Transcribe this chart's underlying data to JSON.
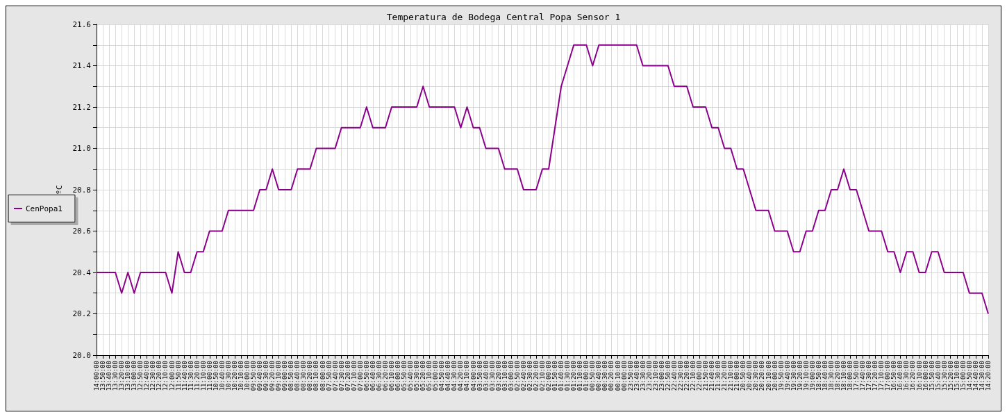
{
  "chart_data": {
    "type": "line",
    "title": "Temperatura de Bodega Central Popa Sensor 1",
    "ylabel": "ºC",
    "categories": [
      "14:00:00",
      "13:50:00",
      "13:40:00",
      "13:30:00",
      "13:20:00",
      "13:10:00",
      "13:00:00",
      "12:50:00",
      "12:40:00",
      "12:30:00",
      "12:20:00",
      "12:10:00",
      "12:00:00",
      "11:50:00",
      "11:40:00",
      "11:30:00",
      "11:20:00",
      "11:10:00",
      "11:00:00",
      "10:50:00",
      "10:40:00",
      "10:30:00",
      "10:20:00",
      "10:10:00",
      "10:00:00",
      "09:50:00",
      "09:40:00",
      "09:30:00",
      "09:20:00",
      "09:10:00",
      "09:00:00",
      "08:50:00",
      "08:40:00",
      "08:30:00",
      "08:20:00",
      "08:10:00",
      "08:00:00",
      "07:50:00",
      "07:40:00",
      "07:30:00",
      "07:20:00",
      "07:10:00",
      "07:00:00",
      "06:50:00",
      "06:40:00",
      "06:30:00",
      "06:20:00",
      "06:10:00",
      "06:00:00",
      "05:50:00",
      "05:40:00",
      "05:30:00",
      "05:20:00",
      "05:10:00",
      "05:00:00",
      "04:50:00",
      "04:40:00",
      "04:30:00",
      "04:20:00",
      "04:10:00",
      "04:00:00",
      "03:50:00",
      "03:40:00",
      "03:30:00",
      "03:20:00",
      "03:10:00",
      "03:00:00",
      "02:50:00",
      "02:40:00",
      "02:30:00",
      "02:20:00",
      "02:10:00",
      "02:00:00",
      "01:50:00",
      "01:40:00",
      "01:30:00",
      "01:20:00",
      "01:10:00",
      "01:00:00",
      "00:50:00",
      "00:40:00",
      "00:30:00",
      "00:20:00",
      "00:10:00",
      "00:00:00",
      "23:50:00",
      "23:40:00",
      "23:30:00",
      "23:20:00",
      "23:10:00",
      "23:00:00",
      "22:50:00",
      "22:40:00",
      "22:30:00",
      "22:20:00",
      "22:10:00",
      "22:00:00",
      "21:50:00",
      "21:40:00",
      "21:30:00",
      "21:20:00",
      "21:10:00",
      "21:00:00",
      "20:50:00",
      "20:40:00",
      "20:30:00",
      "20:20:00",
      "20:10:00",
      "20:00:00",
      "19:50:00",
      "19:40:00",
      "19:30:00",
      "19:20:00",
      "19:10:00",
      "19:00:00",
      "18:50:00",
      "18:40:00",
      "18:30:00",
      "18:20:00",
      "18:10:00",
      "18:00:00",
      "17:50:00",
      "17:40:00",
      "17:30:00",
      "17:20:00",
      "17:10:00",
      "17:00:00",
      "16:50:00",
      "16:40:00",
      "16:30:00",
      "16:20:00",
      "16:10:00",
      "16:00:00",
      "15:50:00",
      "15:40:00",
      "15:30:00",
      "15:20:00",
      "15:10:00",
      "15:00:00",
      "14:50:00",
      "14:40:00",
      "14:30:00",
      "14:20:00"
    ],
    "series": [
      {
        "name": "CenPopa1",
        "color": "#8b008b",
        "values": [
          20.4,
          20.4,
          20.4,
          20.4,
          20.3,
          20.4,
          20.3,
          20.4,
          20.4,
          20.4,
          20.4,
          20.4,
          20.3,
          20.5,
          20.4,
          20.4,
          20.5,
          20.5,
          20.6,
          20.6,
          20.6,
          20.7,
          20.7,
          20.7,
          20.7,
          20.7,
          20.8,
          20.8,
          20.9,
          20.8,
          20.8,
          20.8,
          20.9,
          20.9,
          20.9,
          21.0,
          21.0,
          21.0,
          21.0,
          21.1,
          21.1,
          21.1,
          21.1,
          21.2,
          21.1,
          21.1,
          21.1,
          21.2,
          21.2,
          21.2,
          21.2,
          21.2,
          21.3,
          21.2,
          21.2,
          21.2,
          21.2,
          21.2,
          21.1,
          21.2,
          21.1,
          21.1,
          21.0,
          21.0,
          21.0,
          20.9,
          20.9,
          20.9,
          20.8,
          20.8,
          20.8,
          20.9,
          20.9,
          21.1,
          21.3,
          21.4,
          21.5,
          21.5,
          21.5,
          21.4,
          21.5,
          21.5,
          21.5,
          21.5,
          21.5,
          21.5,
          21.5,
          21.4,
          21.4,
          21.4,
          21.4,
          21.4,
          21.3,
          21.3,
          21.3,
          21.2,
          21.2,
          21.2,
          21.1,
          21.1,
          21.0,
          21.0,
          20.9,
          20.9,
          20.8,
          20.7,
          20.7,
          20.7,
          20.6,
          20.6,
          20.6,
          20.5,
          20.5,
          20.6,
          20.6,
          20.7,
          20.7,
          20.8,
          20.8,
          20.9,
          20.8,
          20.8,
          20.7,
          20.6,
          20.6,
          20.6,
          20.5,
          20.5,
          20.4,
          20.5,
          20.5,
          20.4,
          20.4,
          20.5,
          20.5,
          20.4,
          20.4,
          20.4,
          20.4,
          20.3,
          20.3,
          20.3,
          20.2
        ]
      }
    ],
    "ylim": [
      20,
      21.6
    ],
    "yticks": [
      {
        "value": 20,
        "label": "20.0"
      },
      {
        "value": 20.1,
        "label": null
      },
      20.2,
      {
        "value": 20.3,
        "label": null
      },
      20.4,
      {
        "value": 20.5,
        "label": null
      },
      20.6,
      {
        "value": 20.7,
        "label": null
      },
      20.8,
      {
        "value": 20.9,
        "label": null
      },
      {
        "value": 21,
        "label": "21.0"
      },
      {
        "value": 21.1,
        "label": null
      },
      21.2,
      {
        "value": 21.3,
        "label": null
      },
      21.4,
      {
        "value": 21.5,
        "label": null
      },
      21.6
    ],
    "grid": true,
    "legend": "left",
    "marker": "none",
    "line_style": "solid"
  }
}
